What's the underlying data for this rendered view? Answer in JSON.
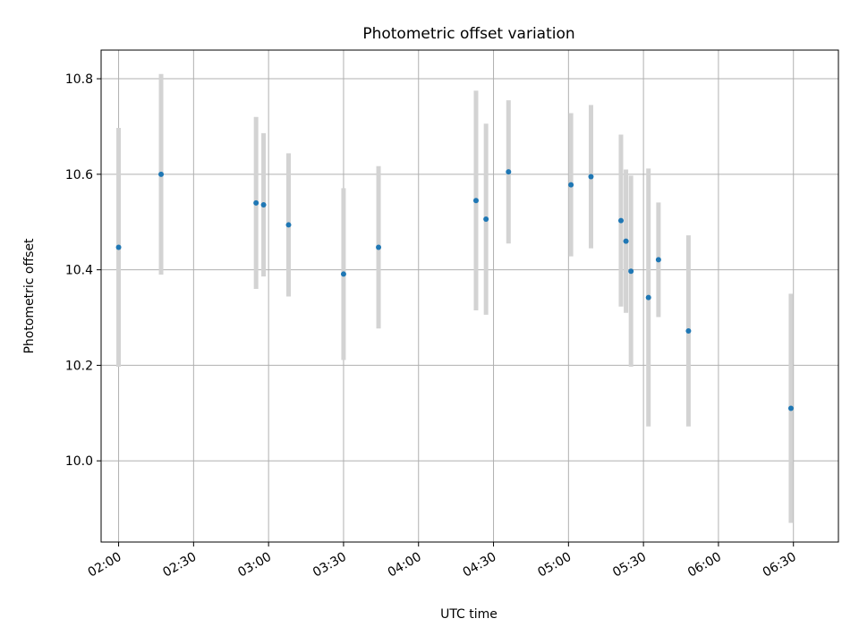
{
  "chart_data": {
    "type": "scatter",
    "title": "Photometric offset variation",
    "xlabel": "UTC time",
    "ylabel": "Photometric offset",
    "x_unit": "UTC time (HH:MM)",
    "xlim": [
      "01:53",
      "06:48"
    ],
    "ylim": [
      9.83,
      10.86
    ],
    "x_ticks": [
      "02:00",
      "02:30",
      "03:00",
      "03:30",
      "04:00",
      "04:30",
      "05:00",
      "05:30",
      "06:00",
      "06:30"
    ],
    "y_ticks": [
      10.0,
      10.2,
      10.4,
      10.6,
      10.8
    ],
    "grid": true,
    "colors": {
      "marker": "#1f77b4",
      "errorbar": "#d3d3d3",
      "grid": "#b0b0b0"
    },
    "points": [
      {
        "x": "02:00",
        "y": 10.447,
        "err": 0.25
      },
      {
        "x": "02:17",
        "y": 10.6,
        "err": 0.21
      },
      {
        "x": "02:55",
        "y": 10.54,
        "err": 0.18
      },
      {
        "x": "02:58",
        "y": 10.536,
        "err": 0.15
      },
      {
        "x": "03:08",
        "y": 10.494,
        "err": 0.15
      },
      {
        "x": "03:30",
        "y": 10.391,
        "err": 0.18
      },
      {
        "x": "03:44",
        "y": 10.447,
        "err": 0.17
      },
      {
        "x": "04:23",
        "y": 10.545,
        "err": 0.23
      },
      {
        "x": "04:27",
        "y": 10.506,
        "err": 0.2
      },
      {
        "x": "04:36",
        "y": 10.605,
        "err": 0.15
      },
      {
        "x": "05:01",
        "y": 10.578,
        "err": 0.15
      },
      {
        "x": "05:09",
        "y": 10.595,
        "err": 0.15
      },
      {
        "x": "05:21",
        "y": 10.503,
        "err": 0.18
      },
      {
        "x": "05:23",
        "y": 10.46,
        "err": 0.15
      },
      {
        "x": "05:25",
        "y": 10.397,
        "err": 0.2
      },
      {
        "x": "05:32",
        "y": 10.342,
        "err": 0.27
      },
      {
        "x": "05:36",
        "y": 10.421,
        "err": 0.12
      },
      {
        "x": "05:48",
        "y": 10.272,
        "err": 0.2
      },
      {
        "x": "06:29",
        "y": 10.11,
        "err": 0.24
      }
    ]
  }
}
